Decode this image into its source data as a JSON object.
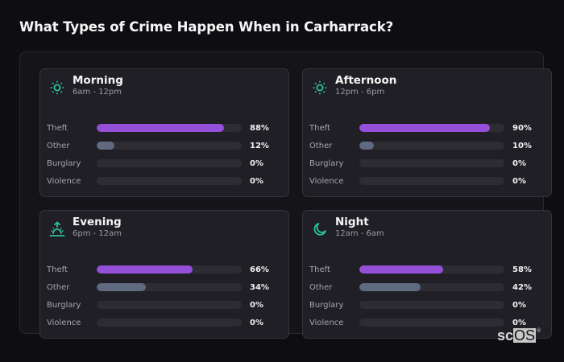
{
  "title": "What Types of Crime Happen When in Carharrack?",
  "colors": {
    "background": "#0e0d12",
    "card": "#212126",
    "track": "#2c2c32",
    "theft": "#9450d8",
    "other": "#5f6a80",
    "icon_accent": "#2bc39a"
  },
  "cards": [
    {
      "title": "Morning",
      "subtitle": "6am - 12pm",
      "icon": "sun-icon",
      "rows": [
        {
          "label": "Theft",
          "value": 88,
          "display": "88%"
        },
        {
          "label": "Other",
          "value": 12,
          "display": "12%"
        },
        {
          "label": "Burglary",
          "value": 0,
          "display": "0%"
        },
        {
          "label": "Violence",
          "value": 0,
          "display": "0%"
        }
      ]
    },
    {
      "title": "Afternoon",
      "subtitle": "12pm - 6pm",
      "icon": "sun-icon",
      "rows": [
        {
          "label": "Theft",
          "value": 90,
          "display": "90%"
        },
        {
          "label": "Other",
          "value": 10,
          "display": "10%"
        },
        {
          "label": "Burglary",
          "value": 0,
          "display": "0%"
        },
        {
          "label": "Violence",
          "value": 0,
          "display": "0%"
        }
      ]
    },
    {
      "title": "Evening",
      "subtitle": "6pm - 12am",
      "icon": "sunrise-icon",
      "rows": [
        {
          "label": "Theft",
          "value": 66,
          "display": "66%"
        },
        {
          "label": "Other",
          "value": 34,
          "display": "34%"
        },
        {
          "label": "Burglary",
          "value": 0,
          "display": "0%"
        },
        {
          "label": "Violence",
          "value": 0,
          "display": "0%"
        }
      ]
    },
    {
      "title": "Night",
      "subtitle": "12am - 6am",
      "icon": "moon-icon",
      "rows": [
        {
          "label": "Theft",
          "value": 58,
          "display": "58%"
        },
        {
          "label": "Other",
          "value": 42,
          "display": "42%"
        },
        {
          "label": "Burglary",
          "value": 0,
          "display": "0%"
        },
        {
          "label": "Violence",
          "value": 0,
          "display": "0%"
        }
      ]
    }
  ],
  "brand": {
    "prefix": "sc",
    "highlight": "OS",
    "mark": "®"
  },
  "chart_data": {
    "type": "bar",
    "orientation": "horizontal",
    "title": "What Types of Crime Happen When in Carharrack?",
    "categories": [
      "Theft",
      "Other",
      "Burglary",
      "Violence"
    ],
    "unit": "%",
    "xlim": [
      0,
      100
    ],
    "panels": [
      {
        "name": "Morning",
        "subtitle": "6am - 12pm",
        "values": [
          88,
          12,
          0,
          0
        ]
      },
      {
        "name": "Afternoon",
        "subtitle": "12pm - 6pm",
        "values": [
          90,
          10,
          0,
          0
        ]
      },
      {
        "name": "Evening",
        "subtitle": "6pm - 12am",
        "values": [
          66,
          34,
          0,
          0
        ]
      },
      {
        "name": "Night",
        "subtitle": "12am - 6am",
        "values": [
          58,
          42,
          0,
          0
        ]
      }
    ],
    "series_colors": {
      "Theft": "#9450d8",
      "Other": "#5f6a80"
    },
    "grid": false,
    "legend": "none"
  }
}
